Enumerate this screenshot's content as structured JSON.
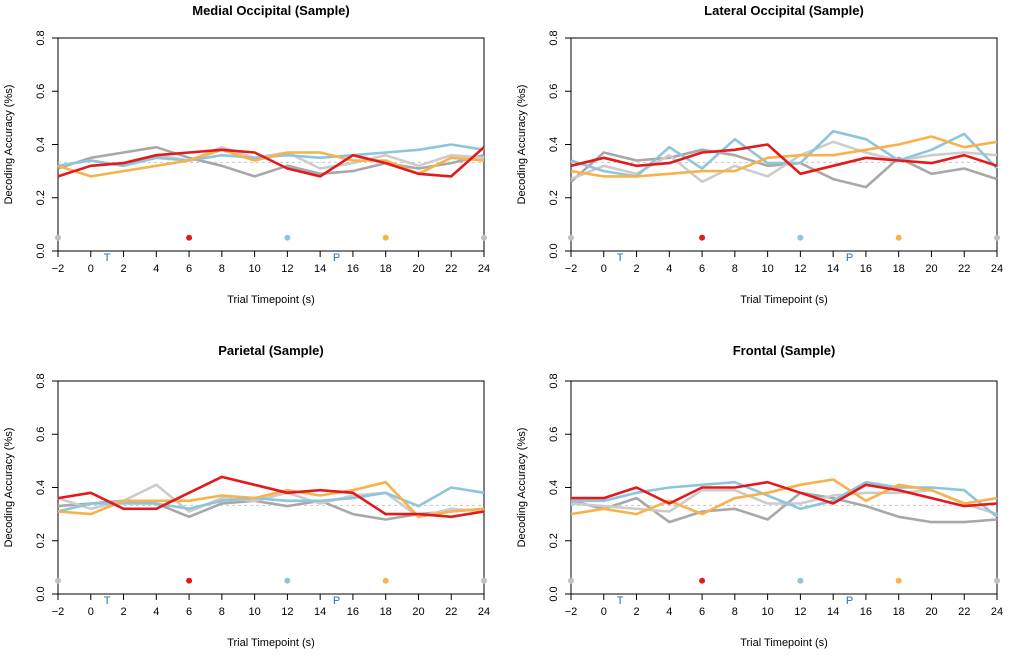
{
  "chart_data": [
    {
      "type": "line",
      "title": "Medial Occipital (Sample)",
      "xlabel": "Trial Timepoint (s)",
      "ylabel": "Decoding Accuracy (%s)",
      "xlim": [
        -2,
        24
      ],
      "ylim": [
        0,
        0.8
      ],
      "x": [
        -2,
        0,
        2,
        4,
        6,
        8,
        10,
        12,
        14,
        16,
        18,
        20,
        22,
        24
      ],
      "chance": 0.333,
      "markers": [
        {
          "text": "T",
          "x": 1
        },
        {
          "text": "P",
          "x": 15
        }
      ],
      "dots": [
        {
          "x": -2,
          "color": "#c0c0c0"
        },
        {
          "x": 6,
          "color": "#e31a1c"
        },
        {
          "x": 12,
          "color": "#8ec5dd"
        },
        {
          "x": 18,
          "color": "#f6b24b"
        },
        {
          "x": 24,
          "color": "#c0c0c0"
        }
      ],
      "series": [
        {
          "color": "#a8a8a8",
          "values": [
            0.31,
            0.35,
            0.37,
            0.39,
            0.35,
            0.32,
            0.28,
            0.32,
            0.29,
            0.3,
            0.33,
            0.31,
            0.33,
            0.36
          ]
        },
        {
          "color": "#cccccc",
          "values": [
            0.32,
            0.34,
            0.32,
            0.36,
            0.34,
            0.39,
            0.35,
            0.37,
            0.31,
            0.33,
            0.36,
            0.32,
            0.36,
            0.35
          ]
        },
        {
          "color": "#8ec5dd",
          "values": [
            0.32,
            0.34,
            0.32,
            0.35,
            0.34,
            0.36,
            0.35,
            0.36,
            0.35,
            0.36,
            0.37,
            0.38,
            0.4,
            0.38
          ]
        },
        {
          "color": "#f6b24b",
          "values": [
            0.32,
            0.28,
            0.3,
            0.32,
            0.34,
            0.38,
            0.34,
            0.37,
            0.37,
            0.34,
            0.34,
            0.29,
            0.35,
            0.34
          ]
        },
        {
          "color": "#e31a1c",
          "values": [
            0.28,
            0.32,
            0.33,
            0.36,
            0.37,
            0.38,
            0.37,
            0.31,
            0.28,
            0.36,
            0.33,
            0.29,
            0.28,
            0.39
          ]
        }
      ]
    },
    {
      "type": "line",
      "title": "Lateral Occipital (Sample)",
      "xlabel": "Trial Timepoint (s)",
      "ylabel": "Decoding Accuracy (%s)",
      "xlim": [
        -2,
        24
      ],
      "ylim": [
        0,
        0.8
      ],
      "x": [
        -2,
        0,
        2,
        4,
        6,
        8,
        10,
        12,
        14,
        16,
        18,
        20,
        22,
        24
      ],
      "chance": 0.333,
      "markers": [
        {
          "text": "T",
          "x": 1
        },
        {
          "text": "P",
          "x": 15
        }
      ],
      "dots": [
        {
          "x": -2,
          "color": "#c0c0c0"
        },
        {
          "x": 6,
          "color": "#e31a1c"
        },
        {
          "x": 12,
          "color": "#8ec5dd"
        },
        {
          "x": 18,
          "color": "#f6b24b"
        },
        {
          "x": 24,
          "color": "#c0c0c0"
        }
      ],
      "series": [
        {
          "color": "#a8a8a8",
          "values": [
            0.26,
            0.37,
            0.34,
            0.35,
            0.38,
            0.36,
            0.32,
            0.33,
            0.27,
            0.24,
            0.35,
            0.29,
            0.31,
            0.27
          ]
        },
        {
          "color": "#cccccc",
          "values": [
            0.27,
            0.32,
            0.29,
            0.36,
            0.26,
            0.32,
            0.28,
            0.36,
            0.41,
            0.37,
            0.34,
            0.36,
            0.37,
            0.36
          ]
        },
        {
          "color": "#8ec5dd",
          "values": [
            0.34,
            0.3,
            0.28,
            0.39,
            0.31,
            0.42,
            0.33,
            0.33,
            0.45,
            0.42,
            0.34,
            0.38,
            0.44,
            0.31
          ]
        },
        {
          "color": "#f6b24b",
          "values": [
            0.3,
            0.28,
            0.28,
            0.29,
            0.3,
            0.3,
            0.35,
            0.36,
            0.36,
            0.38,
            0.4,
            0.43,
            0.39,
            0.41
          ]
        },
        {
          "color": "#e31a1c",
          "values": [
            0.32,
            0.35,
            0.32,
            0.33,
            0.37,
            0.38,
            0.4,
            0.29,
            0.32,
            0.35,
            0.34,
            0.33,
            0.36,
            0.32
          ]
        }
      ]
    },
    {
      "type": "line",
      "title": "Parietal (Sample)",
      "xlabel": "Trial Timepoint (s)",
      "ylabel": "Decoding Accuracy (%s)",
      "xlim": [
        -2,
        24
      ],
      "ylim": [
        0,
        0.8
      ],
      "x": [
        -2,
        0,
        2,
        4,
        6,
        8,
        10,
        12,
        14,
        16,
        18,
        20,
        22,
        24
      ],
      "chance": 0.333,
      "markers": [
        {
          "text": "T",
          "x": 1
        },
        {
          "text": "P",
          "x": 15
        }
      ],
      "dots": [
        {
          "x": -2,
          "color": "#c0c0c0"
        },
        {
          "x": 6,
          "color": "#e31a1c"
        },
        {
          "x": 12,
          "color": "#8ec5dd"
        },
        {
          "x": 18,
          "color": "#f6b24b"
        },
        {
          "x": 24,
          "color": "#c0c0c0"
        }
      ],
      "series": [
        {
          "color": "#a8a8a8",
          "values": [
            0.33,
            0.34,
            0.35,
            0.34,
            0.29,
            0.34,
            0.35,
            0.33,
            0.35,
            0.3,
            0.28,
            0.3,
            0.31,
            0.32
          ]
        },
        {
          "color": "#cccccc",
          "values": [
            0.36,
            0.32,
            0.35,
            0.41,
            0.31,
            0.36,
            0.35,
            0.38,
            0.34,
            0.37,
            0.38,
            0.29,
            0.32,
            0.31
          ]
        },
        {
          "color": "#8ec5dd",
          "values": [
            0.31,
            0.34,
            0.34,
            0.34,
            0.32,
            0.35,
            0.36,
            0.35,
            0.35,
            0.36,
            0.38,
            0.33,
            0.4,
            0.38
          ]
        },
        {
          "color": "#f6b24b",
          "values": [
            0.31,
            0.3,
            0.35,
            0.35,
            0.35,
            0.37,
            0.36,
            0.39,
            0.37,
            0.39,
            0.42,
            0.29,
            0.31,
            0.32
          ]
        },
        {
          "color": "#e31a1c",
          "values": [
            0.36,
            0.38,
            0.32,
            0.32,
            0.38,
            0.44,
            0.41,
            0.38,
            0.39,
            0.38,
            0.3,
            0.3,
            0.29,
            0.31
          ]
        }
      ]
    },
    {
      "type": "line",
      "title": "Frontal (Sample)",
      "xlabel": "Trial Timepoint (s)",
      "ylabel": "Decoding Accuracy (%s)",
      "xlim": [
        -2,
        24
      ],
      "ylim": [
        0,
        0.8
      ],
      "x": [
        -2,
        0,
        2,
        4,
        6,
        8,
        10,
        12,
        14,
        16,
        18,
        20,
        22,
        24
      ],
      "chance": 0.333,
      "markers": [
        {
          "text": "T",
          "x": 1
        },
        {
          "text": "P",
          "x": 15
        }
      ],
      "dots": [
        {
          "x": -2,
          "color": "#c0c0c0"
        },
        {
          "x": 6,
          "color": "#e31a1c"
        },
        {
          "x": 12,
          "color": "#8ec5dd"
        },
        {
          "x": 18,
          "color": "#f6b24b"
        },
        {
          "x": 24,
          "color": "#c0c0c0"
        }
      ],
      "series": [
        {
          "color": "#a8a8a8",
          "values": [
            0.35,
            0.32,
            0.36,
            0.27,
            0.31,
            0.32,
            0.28,
            0.38,
            0.36,
            0.33,
            0.29,
            0.27,
            0.27,
            0.28
          ]
        },
        {
          "color": "#cccccc",
          "values": [
            0.34,
            0.33,
            0.32,
            0.31,
            0.39,
            0.39,
            0.34,
            0.34,
            0.37,
            0.38,
            0.38,
            0.39,
            0.34,
            0.3
          ]
        },
        {
          "color": "#8ec5dd",
          "values": [
            0.35,
            0.35,
            0.38,
            0.4,
            0.41,
            0.42,
            0.37,
            0.32,
            0.35,
            0.42,
            0.4,
            0.4,
            0.39,
            0.29
          ]
        },
        {
          "color": "#f6b24b",
          "values": [
            0.3,
            0.32,
            0.3,
            0.35,
            0.3,
            0.36,
            0.38,
            0.41,
            0.43,
            0.35,
            0.41,
            0.39,
            0.34,
            0.36
          ]
        },
        {
          "color": "#e31a1c",
          "values": [
            0.36,
            0.36,
            0.4,
            0.34,
            0.4,
            0.4,
            0.42,
            0.38,
            0.34,
            0.41,
            0.39,
            0.36,
            0.33,
            0.34
          ]
        }
      ]
    }
  ]
}
